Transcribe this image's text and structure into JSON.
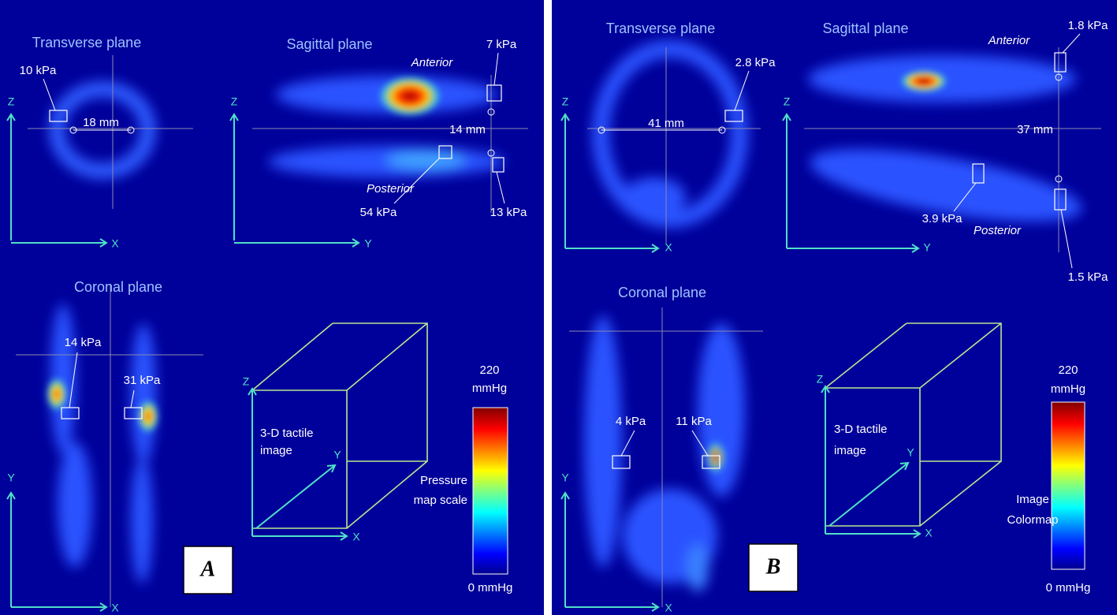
{
  "panels": [
    {
      "label": "A",
      "transverse": {
        "title": "Transverse plane",
        "pressure": "10 kPa",
        "distance": "18 mm",
        "vertical_axis": "Z",
        "horizontal_axis": "X"
      },
      "sagittal": {
        "title": "Sagittal plane",
        "anterior": "Anterior",
        "posterior": "Posterior",
        "pressures": [
          "7 kPa",
          "54 kPa",
          "13 kPa"
        ],
        "distance": "14 mm",
        "vertical_axis": "Z",
        "horizontal_axis": "Y"
      },
      "coronal": {
        "title": "Coronal plane",
        "pressures": [
          "14 kPa",
          "31 kPa"
        ],
        "vertical_axis": "Y",
        "horizontal_axis": "X"
      },
      "cube": {
        "caption": [
          "3-D  tactile",
          "image"
        ],
        "axes": [
          "Z",
          "Y",
          "X"
        ]
      },
      "colorbar": {
        "max": [
          "220",
          "mmHg"
        ],
        "title": [
          "Pressure",
          "map scale"
        ],
        "min": "0 mmHg"
      }
    },
    {
      "label": "B",
      "transverse": {
        "title": "Transverse plane",
        "pressure": "2.8 kPa",
        "distance": "41 mm",
        "vertical_axis": "Z",
        "horizontal_axis": "X"
      },
      "sagittal": {
        "title": "Sagittal plane",
        "anterior": "Anterior",
        "posterior": "Posterior",
        "pressures": [
          "1.8 kPa",
          "3.9 kPa",
          "1.5 kPa"
        ],
        "distance": "37 mm",
        "vertical_axis": "Z",
        "horizontal_axis": "Y"
      },
      "coronal": {
        "title": "Coronal plane",
        "pressures": [
          "4 kPa",
          "11 kPa"
        ],
        "vertical_axis": "Y",
        "horizontal_axis": "X"
      },
      "cube": {
        "caption": [
          "3-D tactile",
          "image"
        ],
        "axes": [
          "Z",
          "Y",
          "X"
        ]
      },
      "colorbar": {
        "max": [
          "220",
          "mmHg"
        ],
        "title": [
          "Image",
          "Colormap"
        ],
        "min": "0 mmHg"
      }
    }
  ]
}
